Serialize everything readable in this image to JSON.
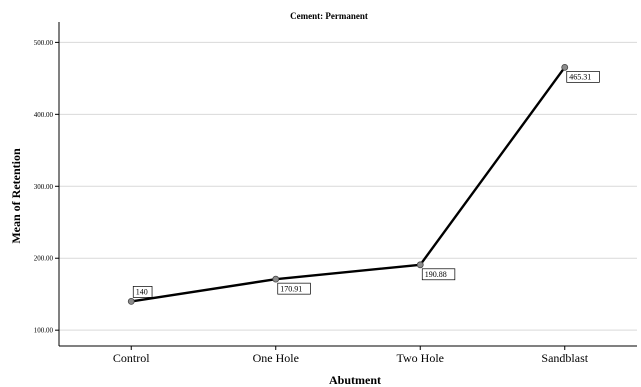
{
  "chart_data": {
    "type": "line",
    "title": "Cement: Permanent",
    "xlabel": "Abutment",
    "ylabel": "Mean of Retention",
    "categories": [
      "Control",
      "One Hole",
      "Two Hole",
      "Sandblast"
    ],
    "series": [
      {
        "values": [
          140,
          170.91,
          190.88,
          465.31
        ],
        "data_labels": [
          "140",
          "170.91",
          "190.88",
          "465.31"
        ]
      }
    ],
    "yticks": [
      100,
      200,
      300,
      400,
      500
    ],
    "ytick_labels": [
      "100.00",
      "200.00",
      "300.00",
      "400.00",
      "500.00"
    ],
    "ylim": [
      78,
      520
    ],
    "grid": true,
    "legend": "none",
    "colors": {
      "line": "#000000",
      "marker_fill": "#8c8c8c",
      "grid": "#d9d9d9",
      "axis": "#000000"
    }
  }
}
